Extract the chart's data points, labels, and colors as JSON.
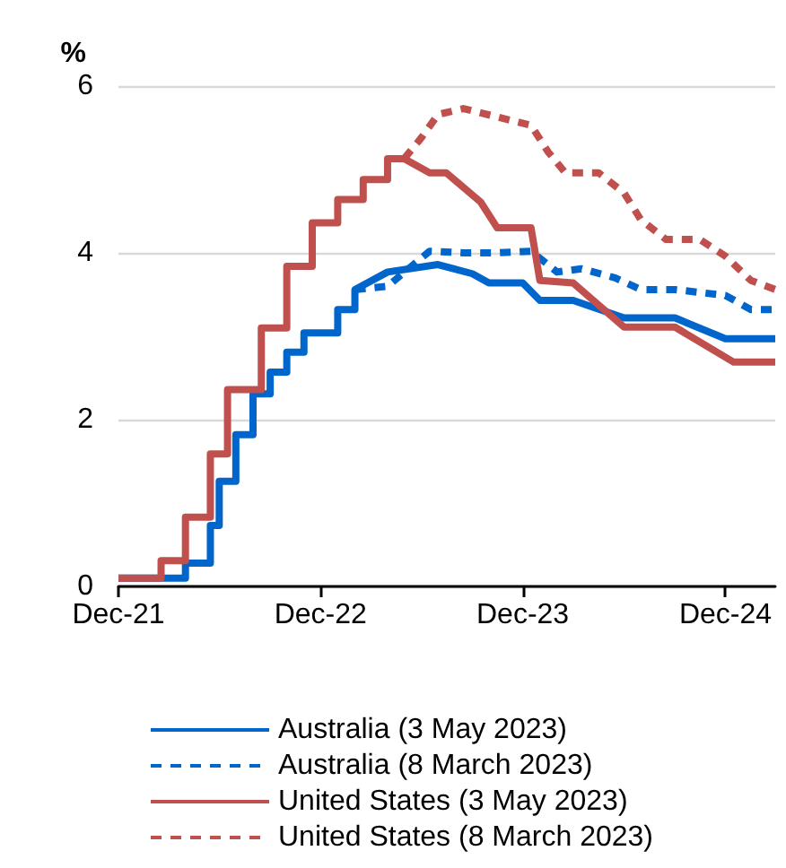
{
  "chart_data": {
    "type": "line",
    "ylabel": "%",
    "ylim": [
      0,
      6
    ],
    "yticks": [
      0,
      2,
      4,
      6
    ],
    "xlim": [
      "2021-12-01",
      "2025-03-01"
    ],
    "xticks": [
      {
        "value": "2021-12-01",
        "label": "Dec-21"
      },
      {
        "value": "2022-12-01",
        "label": "Dec-22"
      },
      {
        "value": "2023-12-01",
        "label": "Dec-23"
      },
      {
        "value": "2024-12-01",
        "label": "Dec-24"
      }
    ],
    "grid": "y",
    "legend": "bottom",
    "marker": "none",
    "series": [
      {
        "name": "Australia (3 May 2023)",
        "color": "#0066cc",
        "line_style": "solid",
        "x": [
          "2021-12-01",
          "2022-04-01",
          "2022-04-01",
          "2022-05-16",
          "2022-05-16",
          "2022-06-01",
          "2022-06-01",
          "2022-07-01",
          "2022-07-01",
          "2022-08-01",
          "2022-08-01",
          "2022-09-01",
          "2022-09-01",
          "2022-10-01",
          "2022-10-01",
          "2022-11-01",
          "2022-11-01",
          "2023-01-01",
          "2023-01-01",
          "2023-02-01",
          "2023-02-01",
          "2023-04-01",
          "2023-07-01",
          "2023-09-01",
          "2023-10-01",
          "2023-12-01",
          "2024-01-01",
          "2024-03-01",
          "2024-06-01",
          "2024-09-01",
          "2024-12-01",
          "2025-03-01"
        ],
        "values": [
          0.1,
          0.1,
          0.28,
          0.28,
          0.73,
          0.73,
          1.26,
          1.26,
          1.82,
          1.82,
          2.31,
          2.31,
          2.57,
          2.57,
          2.81,
          2.81,
          3.04,
          3.04,
          3.32,
          3.32,
          3.56,
          3.77,
          3.86,
          3.75,
          3.64,
          3.64,
          3.43,
          3.43,
          3.22,
          3.22,
          2.97,
          2.97
        ]
      },
      {
        "name": "Australia (8 March 2023)",
        "color": "#0066cc",
        "line_style": "dashed",
        "x": [
          "2023-02-01",
          "2023-04-01",
          "2023-05-16",
          "2023-06-16",
          "2023-08-16",
          "2023-10-16",
          "2023-12-16",
          "2024-02-01",
          "2024-03-16",
          "2024-05-16",
          "2024-07-01",
          "2024-09-01",
          "2024-12-01",
          "2025-01-16",
          "2025-03-01"
        ],
        "values": [
          3.56,
          3.6,
          3.85,
          4.02,
          4.0,
          4.0,
          4.02,
          3.77,
          3.81,
          3.7,
          3.56,
          3.56,
          3.49,
          3.32,
          3.32
        ]
      },
      {
        "name": "United States (3 May 2023)",
        "color": "#c0504d",
        "line_style": "solid",
        "x": [
          "2021-12-01",
          "2022-02-16",
          "2022-02-16",
          "2022-04-01",
          "2022-04-01",
          "2022-05-16",
          "2022-05-16",
          "2022-06-16",
          "2022-06-16",
          "2022-08-16",
          "2022-08-16",
          "2022-10-01",
          "2022-10-01",
          "2022-11-16",
          "2022-11-16",
          "2023-01-01",
          "2023-01-01",
          "2023-02-16",
          "2023-02-16",
          "2023-04-01",
          "2023-04-01",
          "2023-05-01",
          "2023-06-16",
          "2023-07-16",
          "2023-09-16",
          "2023-10-16",
          "2023-12-16",
          "2024-01-01",
          "2024-03-01",
          "2024-06-01",
          "2024-09-01",
          "2024-12-16",
          "2025-03-01"
        ],
        "values": [
          0.1,
          0.1,
          0.31,
          0.31,
          0.83,
          0.83,
          1.59,
          1.59,
          2.36,
          2.36,
          3.1,
          3.1,
          3.84,
          3.84,
          4.36,
          4.36,
          4.64,
          4.64,
          4.88,
          4.88,
          5.13,
          5.13,
          4.96,
          4.96,
          4.61,
          4.3,
          4.3,
          3.67,
          3.64,
          3.11,
          3.11,
          2.69,
          2.69
        ]
      },
      {
        "name": "United States (8 March 2023)",
        "color": "#c0504d",
        "line_style": "dashed",
        "x": [
          "2023-05-01",
          "2023-06-01",
          "2023-07-01",
          "2023-08-16",
          "2023-10-16",
          "2023-12-16",
          "2024-01-16",
          "2024-02-16",
          "2024-04-16",
          "2024-06-01",
          "2024-07-01",
          "2024-08-16",
          "2024-10-16",
          "2024-12-01",
          "2025-01-16",
          "2025-03-01"
        ],
        "values": [
          5.13,
          5.38,
          5.66,
          5.73,
          5.63,
          5.53,
          5.21,
          4.96,
          4.96,
          4.72,
          4.4,
          4.16,
          4.16,
          3.96,
          3.67,
          3.56
        ]
      }
    ]
  }
}
